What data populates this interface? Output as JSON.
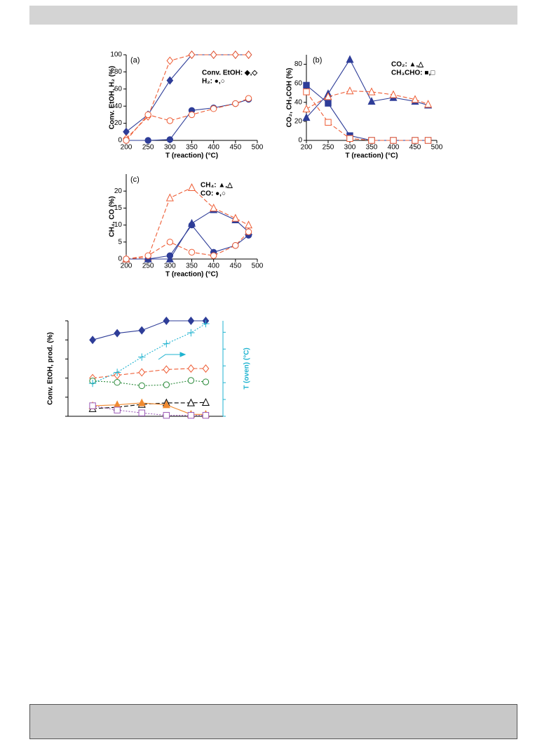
{
  "chart_data": [
    {
      "type": "line",
      "title": "(a)",
      "xlabel": "T (reaction) (°C)",
      "ylabel": "Conv. EtOH, H₂ (%)",
      "legend": [
        "Conv. EtOH: ◆,◇",
        "H₂: ●,○"
      ],
      "x": [
        200,
        250,
        300,
        350,
        400,
        450,
        480
      ],
      "xlim": [
        200,
        500
      ],
      "xticks": [
        200,
        250,
        300,
        350,
        400,
        450,
        500
      ],
      "ylim": [
        0,
        100
      ],
      "yticks": [
        0,
        20,
        40,
        60,
        80,
        100
      ],
      "series": [
        {
          "color": "#2e3d98",
          "marker": "diamond",
          "filled": true,
          "dash": "solid",
          "values": [
            10,
            30,
            70,
            100,
            100,
            100,
            100
          ]
        },
        {
          "color": "#ee5c34",
          "marker": "diamond",
          "filled": false,
          "dash": "dashed",
          "values": [
            2,
            28,
            93,
            100,
            100,
            100,
            100
          ]
        },
        {
          "color": "#2e3d98",
          "marker": "circle",
          "filled": true,
          "dash": "solid",
          "values": [
            0,
            0,
            1,
            35,
            38,
            43,
            48
          ]
        },
        {
          "color": "#ee5c34",
          "marker": "circle",
          "filled": false,
          "dash": "dashed",
          "values": [
            0,
            30,
            23,
            30,
            37,
            43,
            49
          ]
        }
      ]
    },
    {
      "type": "line",
      "title": "(b)",
      "xlabel": "T (reaction) (°C)",
      "ylabel": "CO₂, CH₃COH (%)",
      "legend": [
        "CO₂: ▲,△",
        "CH₃CHO: ■,□"
      ],
      "x": [
        200,
        250,
        300,
        350,
        400,
        450,
        480
      ],
      "xlim": [
        200,
        500
      ],
      "xticks": [
        200,
        250,
        300,
        350,
        400,
        450,
        500
      ],
      "ylim": [
        0,
        90
      ],
      "yticks": [
        0,
        20,
        40,
        60,
        80
      ],
      "series": [
        {
          "color": "#2e3d98",
          "marker": "triangle",
          "filled": true,
          "dash": "solid",
          "values": [
            24,
            49,
            85,
            41,
            45,
            41,
            37
          ]
        },
        {
          "color": "#ee5c34",
          "marker": "triangle",
          "filled": false,
          "dash": "dashed",
          "values": [
            33,
            46,
            52,
            51,
            48,
            43,
            38
          ]
        },
        {
          "color": "#2e3d98",
          "marker": "square",
          "filled": true,
          "dash": "solid",
          "values": [
            58,
            39,
            5,
            0,
            0,
            0,
            0
          ]
        },
        {
          "color": "#ee5c34",
          "marker": "square",
          "filled": false,
          "dash": "dashed",
          "values": [
            51,
            19,
            2,
            0,
            0,
            0,
            0
          ]
        }
      ]
    },
    {
      "type": "line",
      "title": "(c)",
      "xlabel": "T (reaction) (°C)",
      "ylabel": "CH₄, CO (%)",
      "legend": [
        "CH₄: ▲,△",
        "CO: ●,○"
      ],
      "x": [
        200,
        250,
        300,
        350,
        400,
        450,
        480
      ],
      "xlim": [
        200,
        500
      ],
      "xticks": [
        200,
        250,
        300,
        350,
        400,
        450,
        500
      ],
      "ylim": [
        0,
        25
      ],
      "yticks": [
        0,
        5,
        10,
        15,
        20
      ],
      "series": [
        {
          "color": "#2e3d98",
          "marker": "triangle",
          "filled": true,
          "dash": "solid",
          "values": [
            0,
            0,
            0,
            10.5,
            14.5,
            11.5,
            8
          ]
        },
        {
          "color": "#ee5c34",
          "marker": "triangle",
          "filled": false,
          "dash": "dashed",
          "values": [
            0,
            0.5,
            18,
            21,
            15,
            12,
            10
          ]
        },
        {
          "color": "#2e3d98",
          "marker": "circle",
          "filled": true,
          "dash": "solid",
          "values": [
            0,
            0,
            1,
            10,
            2,
            4,
            7
          ]
        },
        {
          "color": "#ee5c34",
          "marker": "circle",
          "filled": false,
          "dash": "dashed",
          "values": [
            0,
            1,
            5,
            2,
            1,
            4,
            8
          ]
        }
      ]
    },
    {
      "type": "line",
      "ylabel": "Conv. EtOH, prod. (%)",
      "y2label": "T (oven) (°C)",
      "y2color": "#1fb3d0",
      "tick_labels": false,
      "x": [
        1,
        2,
        3,
        4,
        5,
        5.6
      ],
      "xlim": [
        0,
        6.3
      ],
      "ylim": [
        0,
        100
      ],
      "yticks": [
        0,
        20,
        40,
        60,
        80,
        100
      ],
      "y2lim": [
        0,
        100
      ],
      "y2ticks": [
        0,
        17.6,
        35.2,
        52.8,
        70.4,
        88
      ],
      "series": [
        {
          "color": "#2e3d98",
          "marker": "diamond",
          "filled": true,
          "dash": "solid",
          "values": [
            80,
            87,
            90,
            100,
            100,
            100
          ]
        },
        {
          "color": "#ee5c34",
          "marker": "diamond",
          "filled": false,
          "dash": "dashed",
          "values": [
            40,
            43,
            46,
            49,
            50,
            50
          ]
        },
        {
          "color": "#2a8a3a",
          "marker": "circle",
          "filled": false,
          "dash": "dotted",
          "values": [
            37,
            35.5,
            32,
            33,
            37.5,
            36
          ]
        },
        {
          "color": "#1fb3d0",
          "marker": "plus",
          "filled": false,
          "dash": "dotted",
          "axis": "y2",
          "values": [
            34.5,
            46,
            62,
            76,
            87.5,
            97
          ]
        },
        {
          "color": "#000000",
          "marker": "triangle",
          "filled": false,
          "dash": "dashed",
          "values": [
            8,
            9.5,
            12.5,
            14,
            14,
            14.5
          ]
        },
        {
          "color": "#f08a30",
          "marker": "triangle",
          "filled": true,
          "dash": "solid",
          "values": [
            11,
            12,
            14,
            12,
            2,
            2
          ]
        },
        {
          "color": "#9b59b6",
          "marker": "square",
          "filled": false,
          "dash": "dotted",
          "values": [
            11,
            6.5,
            3.5,
            1,
            1,
            1
          ]
        }
      ]
    }
  ]
}
